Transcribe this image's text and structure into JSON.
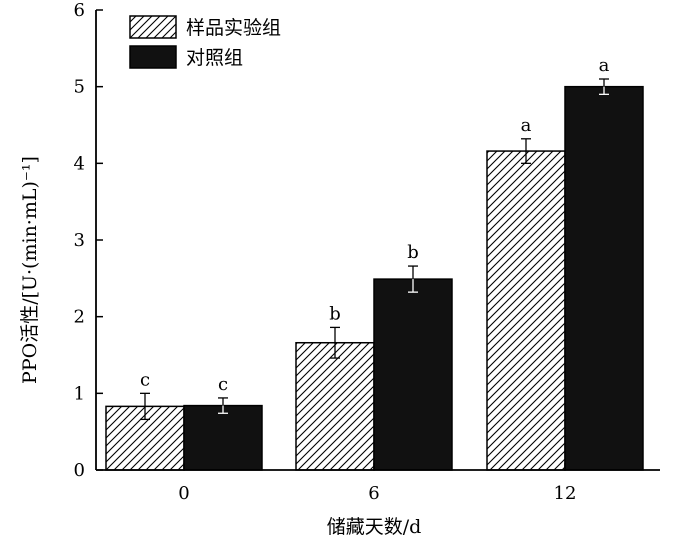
{
  "chart_data": {
    "type": "bar",
    "ylabel": "PPO活性/[U·(min·mL)⁻¹]",
    "xlabel": "储藏天数/d",
    "categories": [
      "0",
      "6",
      "12"
    ],
    "ylim": [
      0,
      6
    ],
    "yticks": [
      "0",
      "1",
      "2",
      "3",
      "4",
      "5",
      "6"
    ],
    "grid": false,
    "legend_position": "top-left",
    "series": [
      {
        "name": "样品实验组",
        "pattern": "diagonal-hatch",
        "color": "#ffffff",
        "values": [
          0.83,
          1.66,
          4.16
        ],
        "errors": [
          0.17,
          0.2,
          0.16
        ],
        "labels": [
          "c",
          "b",
          "a"
        ]
      },
      {
        "name": "对照组",
        "pattern": "solid",
        "color": "#111111",
        "values": [
          0.84,
          2.49,
          5.0
        ],
        "errors": [
          0.1,
          0.17,
          0.1
        ],
        "labels": [
          "c",
          "b",
          "a"
        ]
      }
    ]
  }
}
